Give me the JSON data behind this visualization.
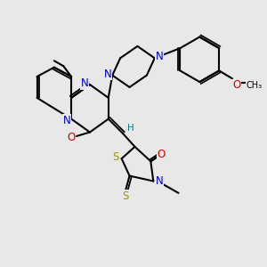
{
  "bg_color": "#e8e8e8",
  "bond_color": "#000000",
  "N_color": "#0000cc",
  "O_color": "#cc0000",
  "S_color": "#999900",
  "H_color": "#008080",
  "lw": 1.5,
  "fs": 8.5,
  "xlim": [
    0,
    10
  ],
  "ylim": [
    0,
    10
  ]
}
